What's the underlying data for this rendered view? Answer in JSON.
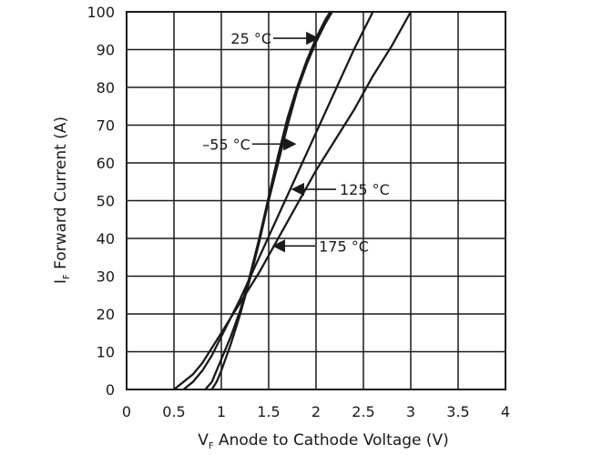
{
  "chart_data": {
    "type": "line",
    "title": "",
    "xlabel": {
      "main": "V",
      "sub": "F",
      "rest": " Anode to Cathode Voltage (V)"
    },
    "ylabel": {
      "main": "I",
      "sub": "F",
      "rest": " Forward Current (A)"
    },
    "xlim": [
      0,
      4
    ],
    "ylim": [
      0,
      100
    ],
    "x_ticks": [
      0,
      0.5,
      1,
      1.5,
      2,
      2.5,
      3,
      3.5,
      4
    ],
    "x_tick_labels": [
      "0",
      "0.5",
      "1",
      "1.5",
      "2",
      "2.5",
      "3",
      "3.5",
      "4"
    ],
    "y_ticks": [
      0,
      10,
      20,
      30,
      40,
      50,
      60,
      70,
      80,
      90,
      100
    ],
    "y_tick_labels": [
      "0",
      "10",
      "20",
      "30",
      "40",
      "50",
      "60",
      "70",
      "80",
      "90",
      "100"
    ],
    "grid": true,
    "series": [
      {
        "name": "25 °C",
        "points": [
          [
            0.83,
            0
          ],
          [
            0.9,
            2
          ],
          [
            1.0,
            8
          ],
          [
            1.1,
            14
          ],
          [
            1.2,
            21
          ],
          [
            1.3,
            30
          ],
          [
            1.4,
            40
          ],
          [
            1.5,
            51
          ],
          [
            1.6,
            62
          ],
          [
            1.7,
            72
          ],
          [
            1.8,
            80
          ],
          [
            1.9,
            87
          ],
          [
            2.0,
            93
          ],
          [
            2.1,
            98
          ],
          [
            2.15,
            100
          ]
        ]
      },
      {
        "name": "−55 °C",
        "points": [
          [
            0.9,
            0
          ],
          [
            0.95,
            2
          ],
          [
            1.0,
            5
          ],
          [
            1.1,
            12
          ],
          [
            1.2,
            20
          ],
          [
            1.3,
            29
          ],
          [
            1.4,
            39
          ],
          [
            1.5,
            50
          ],
          [
            1.6,
            60
          ],
          [
            1.7,
            70
          ],
          [
            1.8,
            79
          ],
          [
            1.9,
            86
          ],
          [
            2.0,
            92
          ],
          [
            2.1,
            97
          ],
          [
            2.17,
            100
          ]
        ]
      },
      {
        "name": "125 °C",
        "points": [
          [
            0.6,
            0
          ],
          [
            0.7,
            2
          ],
          [
            0.8,
            5
          ],
          [
            0.9,
            9
          ],
          [
            1.0,
            14
          ],
          [
            1.1,
            19
          ],
          [
            1.2,
            24
          ],
          [
            1.4,
            35
          ],
          [
            1.6,
            46
          ],
          [
            1.8,
            57
          ],
          [
            2.0,
            68
          ],
          [
            2.2,
            79
          ],
          [
            2.4,
            90
          ],
          [
            2.6,
            100
          ]
        ]
      },
      {
        "name": "175 °C",
        "points": [
          [
            0.5,
            0
          ],
          [
            0.6,
            2
          ],
          [
            0.7,
            4
          ],
          [
            0.8,
            7
          ],
          [
            0.9,
            11
          ],
          [
            1.0,
            15
          ],
          [
            1.1,
            19
          ],
          [
            1.2,
            23
          ],
          [
            1.4,
            31
          ],
          [
            1.6,
            40
          ],
          [
            1.8,
            49
          ],
          [
            2.0,
            58
          ],
          [
            2.2,
            66
          ],
          [
            2.4,
            74
          ],
          [
            2.6,
            83
          ],
          [
            2.8,
            91
          ],
          [
            3.0,
            100
          ]
        ]
      }
    ],
    "annotations": [
      {
        "text": "25 °C",
        "text_at": [
          1.1,
          93
        ],
        "arrow_to": [
          2.02,
          93
        ]
      },
      {
        "text": "–55 °C",
        "text_at": [
          0.8,
          65
        ],
        "arrow_to": [
          1.78,
          65
        ]
      },
      {
        "text": "125 °C",
        "text_at": [
          2.25,
          53
        ],
        "arrow_to": [
          1.75,
          53
        ]
      },
      {
        "text": "175 °C",
        "text_at": [
          2.03,
          38
        ],
        "arrow_to": [
          1.55,
          38
        ]
      }
    ]
  }
}
